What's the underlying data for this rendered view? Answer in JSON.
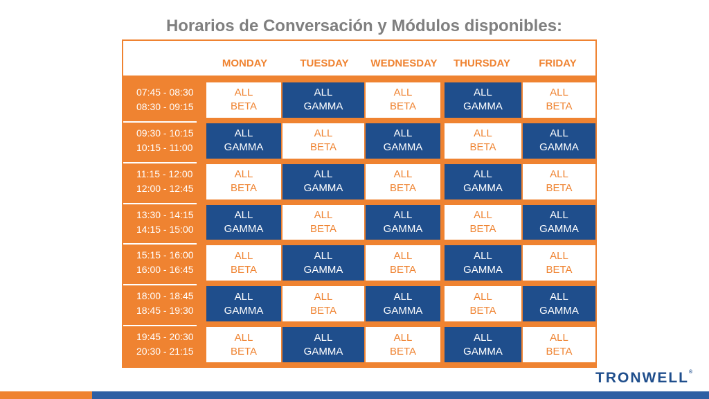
{
  "title": "Horarios de Conversación y Módulos disponibles:",
  "days": [
    "MONDAY",
    "TUESDAY",
    "WEDNESDAY",
    "THURSDAY",
    "FRIDAY"
  ],
  "time_slots": [
    {
      "line1": "07:45 - 08:30",
      "line2": "08:30 - 09:15"
    },
    {
      "line1": "09:30 - 10:15",
      "line2": "10:15 - 11:00"
    },
    {
      "line1": "11:15 - 12:00",
      "line2": "12:00 - 12:45"
    },
    {
      "line1": "13:30 - 14:15",
      "line2": "14:15 - 15:00"
    },
    {
      "line1": "15:15 - 16:00",
      "line2": "16:00 - 16:45"
    },
    {
      "line1": "18:00 - 18:45",
      "line2": "18:45 - 19:30"
    },
    {
      "line1": "19:45 - 20:30",
      "line2": "20:30 - 21:15"
    }
  ],
  "cells": [
    [
      [
        "ALL",
        "BETA"
      ],
      [
        "ALL",
        "GAMMA"
      ],
      [
        "ALL",
        "BETA"
      ],
      [
        "ALL",
        "GAMMA"
      ],
      [
        "ALL",
        "BETA"
      ]
    ],
    [
      [
        "ALL",
        "GAMMA"
      ],
      [
        "ALL",
        "BETA"
      ],
      [
        "ALL",
        "GAMMA"
      ],
      [
        "ALL",
        "BETA"
      ],
      [
        "ALL",
        "GAMMA"
      ]
    ],
    [
      [
        "ALL",
        "BETA"
      ],
      [
        "ALL",
        "GAMMA"
      ],
      [
        "ALL",
        "BETA"
      ],
      [
        "ALL",
        "GAMMA"
      ],
      [
        "ALL",
        "BETA"
      ]
    ],
    [
      [
        "ALL",
        "GAMMA"
      ],
      [
        "ALL",
        "BETA"
      ],
      [
        "ALL",
        "GAMMA"
      ],
      [
        "ALL",
        "BETA"
      ],
      [
        "ALL",
        "GAMMA"
      ]
    ],
    [
      [
        "ALL",
        "BETA"
      ],
      [
        "ALL",
        "GAMMA"
      ],
      [
        "ALL",
        "BETA"
      ],
      [
        "ALL",
        "GAMMA"
      ],
      [
        "ALL",
        "BETA"
      ]
    ],
    [
      [
        "ALL",
        "GAMMA"
      ],
      [
        "ALL",
        "BETA"
      ],
      [
        "ALL",
        "GAMMA"
      ],
      [
        "ALL",
        "BETA"
      ],
      [
        "ALL",
        "GAMMA"
      ]
    ],
    [
      [
        "ALL",
        "BETA"
      ],
      [
        "ALL",
        "GAMMA"
      ],
      [
        "ALL",
        "BETA"
      ],
      [
        "ALL",
        "GAMMA"
      ],
      [
        "ALL",
        "BETA"
      ]
    ]
  ],
  "colors": {
    "orange": "#ef8331",
    "blue": "#1f4e8c",
    "title_gray": "#7f7f7f"
  },
  "logo": {
    "text": "TRONWELL",
    "mark": "®"
  }
}
